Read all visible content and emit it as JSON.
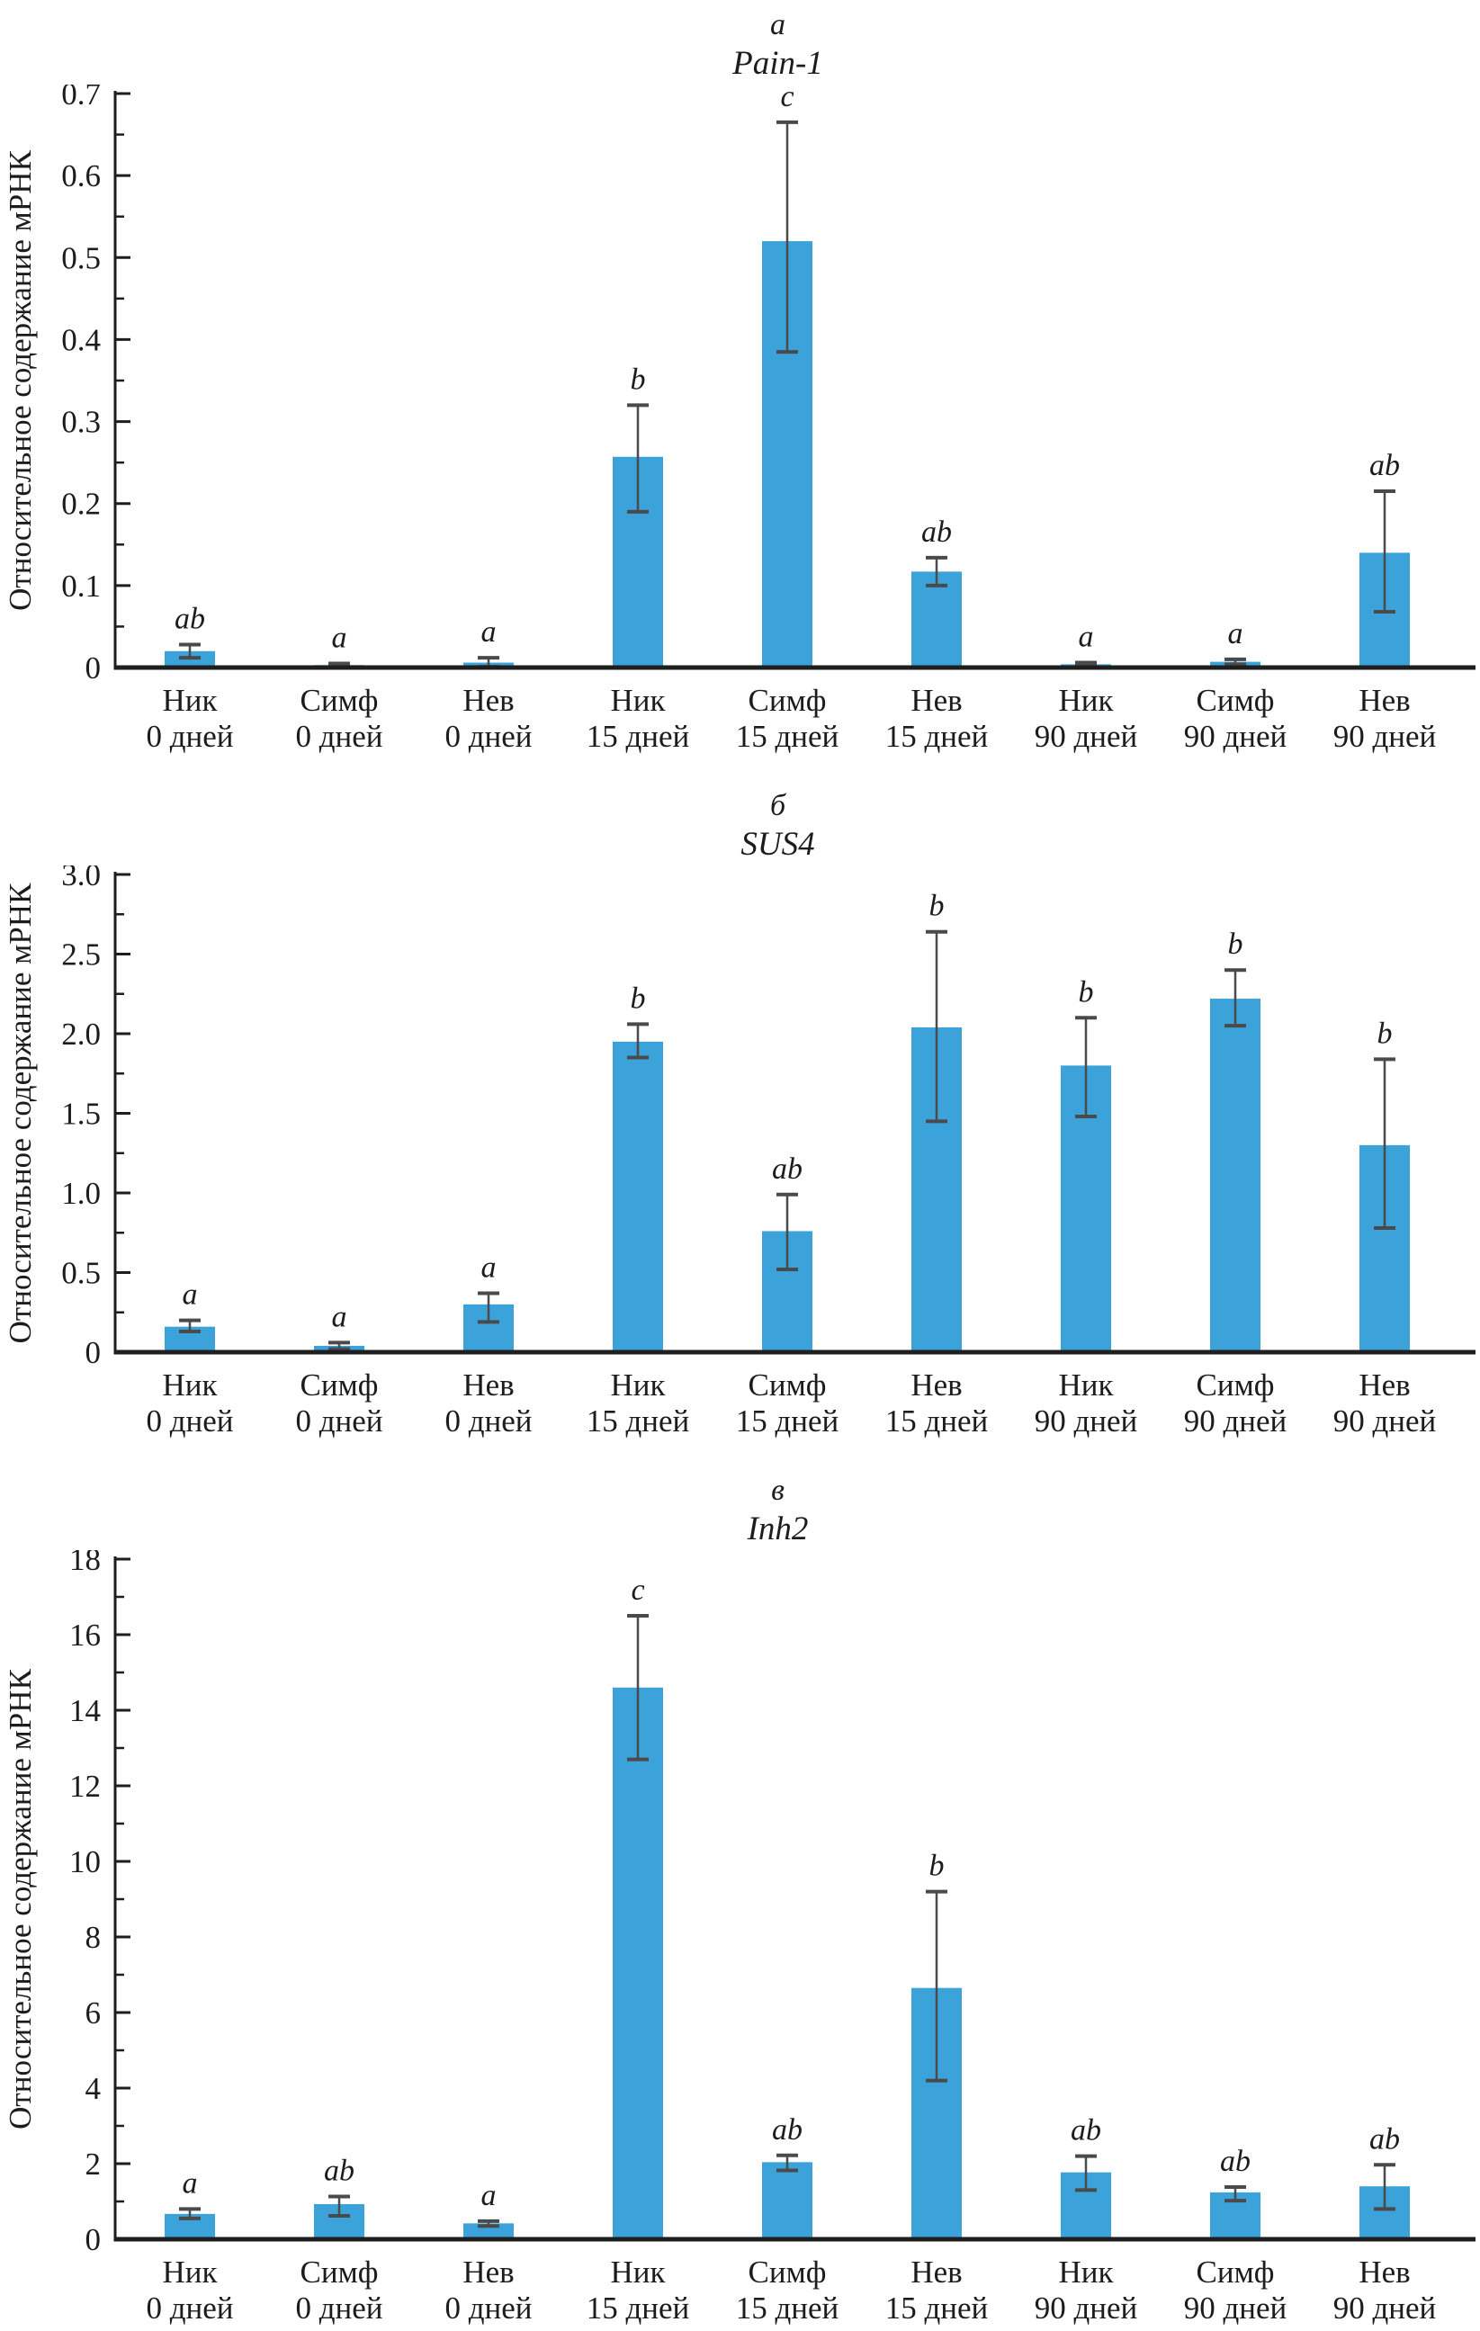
{
  "figure": {
    "background": "#ffffff"
  },
  "colors": {
    "bar": "#3BA2DA",
    "error_bar": "#4a4a4a",
    "axis": "#1e1e1e",
    "text": "#1c1c1c"
  },
  "chart_data": [
    {
      "type": "bar",
      "panel_letter": "а",
      "title": "Pain-1",
      "ylabel": "Относительное содержание мРНК",
      "ylim": [
        0,
        0.7
      ],
      "ytick_step": 0.1,
      "minor_tick_step": 0.05,
      "ytick_decimals": 1,
      "grid": false,
      "categories": [
        [
          "Ник",
          "0 дней"
        ],
        [
          "Симф",
          "0 дней"
        ],
        [
          "Нев",
          "0 дней"
        ],
        [
          "Ник",
          "15 дней"
        ],
        [
          "Симф",
          "15 дней"
        ],
        [
          "Нев",
          "15 дней"
        ],
        [
          "Ник",
          "90 дней"
        ],
        [
          "Симф",
          "90 дней"
        ],
        [
          "Нев",
          "90 дней"
        ]
      ],
      "values": [
        0.02,
        0.003,
        0.006,
        0.257,
        0.52,
        0.117,
        0.004,
        0.007,
        0.14
      ],
      "error_low": [
        0.012,
        0.001,
        0.001,
        0.19,
        0.385,
        0.1,
        0.002,
        0.004,
        0.068
      ],
      "error_high": [
        0.028,
        0.005,
        0.012,
        0.32,
        0.665,
        0.134,
        0.006,
        0.01,
        0.215
      ],
      "sig_letters": [
        "ab",
        "a",
        "a",
        "b",
        "c",
        "ab",
        "a",
        "a",
        "ab"
      ]
    },
    {
      "type": "bar",
      "panel_letter": "б",
      "title": "SUS4",
      "ylabel": "Относительное содержание мРНК",
      "ylim": [
        0,
        3.0
      ],
      "ytick_step": 0.5,
      "minor_tick_step": 0.25,
      "ytick_decimals": 1,
      "grid": false,
      "categories": [
        [
          "Ник",
          "0 дней"
        ],
        [
          "Симф",
          "0 дней"
        ],
        [
          "Нев",
          "0 дней"
        ],
        [
          "Ник",
          "15 дней"
        ],
        [
          "Симф",
          "15 дней"
        ],
        [
          "Нев",
          "15 дней"
        ],
        [
          "Ник",
          "90 дней"
        ],
        [
          "Симф",
          "90 дней"
        ],
        [
          "Нев",
          "90 дней"
        ]
      ],
      "values": [
        0.16,
        0.04,
        0.3,
        1.95,
        0.76,
        2.04,
        1.8,
        2.22,
        1.3
      ],
      "error_low": [
        0.13,
        0.02,
        0.19,
        1.85,
        0.52,
        1.45,
        1.48,
        2.05,
        0.78
      ],
      "error_high": [
        0.2,
        0.06,
        0.37,
        2.06,
        0.99,
        2.64,
        2.1,
        2.4,
        1.84
      ],
      "sig_letters": [
        "a",
        "a",
        "a",
        "b",
        "ab",
        "b",
        "b",
        "b",
        "b"
      ]
    },
    {
      "type": "bar",
      "panel_letter": "в",
      "title": "Inh2",
      "ylabel": "Относительное содержание мРНК",
      "ylim": [
        0,
        18
      ],
      "ytick_step": 2,
      "minor_tick_step": 1,
      "ytick_decimals": 0,
      "grid": false,
      "categories": [
        [
          "Ник",
          "0 дней"
        ],
        [
          "Симф",
          "0 дней"
        ],
        [
          "Нев",
          "0 дней"
        ],
        [
          "Ник",
          "15 дней"
        ],
        [
          "Симф",
          "15 дней"
        ],
        [
          "Нев",
          "15 дней"
        ],
        [
          "Ник",
          "90 дней"
        ],
        [
          "Симф",
          "90 дней"
        ],
        [
          "Нев",
          "90 дней"
        ]
      ],
      "values": [
        0.67,
        0.93,
        0.42,
        14.6,
        2.04,
        6.65,
        1.77,
        1.24,
        1.4
      ],
      "error_low": [
        0.55,
        0.62,
        0.35,
        12.7,
        1.82,
        4.2,
        1.3,
        1.02,
        0.8
      ],
      "error_high": [
        0.8,
        1.13,
        0.48,
        16.5,
        2.22,
        9.2,
        2.2,
        1.38,
        1.97
      ],
      "sig_letters": [
        "a",
        "ab",
        "a",
        "c",
        "ab",
        "b",
        "ab",
        "ab",
        "ab"
      ]
    }
  ]
}
